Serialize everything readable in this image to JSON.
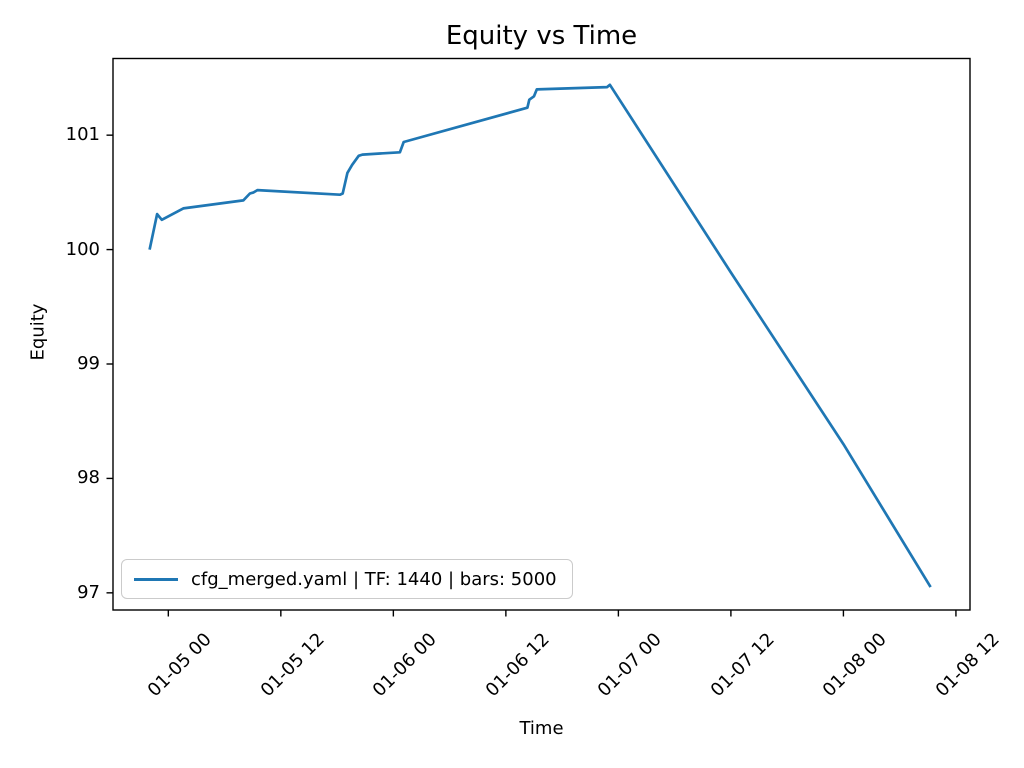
{
  "figure": {
    "title": "Equity vs Time",
    "xlabel": "Time",
    "ylabel": "Equity",
    "background_color": "#ffffff",
    "text_color": "#000000",
    "spine_color": "#000000"
  },
  "legend": {
    "label": "cfg_merged.yaml | TF: 1440 | bars: 5000",
    "line_color": "#1f77b4",
    "position": "lower left"
  },
  "chart_data": {
    "type": "line",
    "title": "Equity vs Time",
    "xlabel": "Time",
    "ylabel": "Equity",
    "grid": false,
    "legend_position": "lower left",
    "x_axis_note": "x values are hours relative to 01-05 00:00",
    "xlim": [
      -5.9,
      85.5
    ],
    "ylim": [
      96.85,
      101.67
    ],
    "x_ticks": [
      {
        "t": 0,
        "label": "01-05 00"
      },
      {
        "t": 12,
        "label": "01-05 12"
      },
      {
        "t": 24,
        "label": "01-06 00"
      },
      {
        "t": 36,
        "label": "01-06 12"
      },
      {
        "t": 48,
        "label": "01-07 00"
      },
      {
        "t": 60,
        "label": "01-07 12"
      },
      {
        "t": 72,
        "label": "01-08 00"
      },
      {
        "t": 84,
        "label": "01-08 12"
      }
    ],
    "y_ticks": [
      97,
      98,
      99,
      100,
      101
    ],
    "series": [
      {
        "name": "cfg_merged.yaml | TF: 1440 | bars: 5000",
        "color": "#1f77b4",
        "points": [
          [
            -2.0,
            100.0
          ],
          [
            -1.2,
            100.31
          ],
          [
            -0.7,
            100.26
          ],
          [
            1.6,
            100.36
          ],
          [
            8.0,
            100.43
          ],
          [
            8.7,
            100.49
          ],
          [
            9.1,
            100.5
          ],
          [
            9.5,
            100.52
          ],
          [
            18.3,
            100.48
          ],
          [
            18.6,
            100.49
          ],
          [
            19.1,
            100.67
          ],
          [
            19.6,
            100.74
          ],
          [
            20.3,
            100.82
          ],
          [
            20.7,
            100.83
          ],
          [
            24.7,
            100.85
          ],
          [
            25.1,
            100.94
          ],
          [
            38.3,
            101.24
          ],
          [
            38.5,
            101.31
          ],
          [
            39.0,
            101.34
          ],
          [
            39.3,
            101.4
          ],
          [
            46.8,
            101.42
          ],
          [
            47.1,
            101.44
          ],
          [
            60.0,
            99.8
          ],
          [
            72.0,
            98.3
          ],
          [
            81.3,
            97.05
          ]
        ]
      }
    ]
  }
}
